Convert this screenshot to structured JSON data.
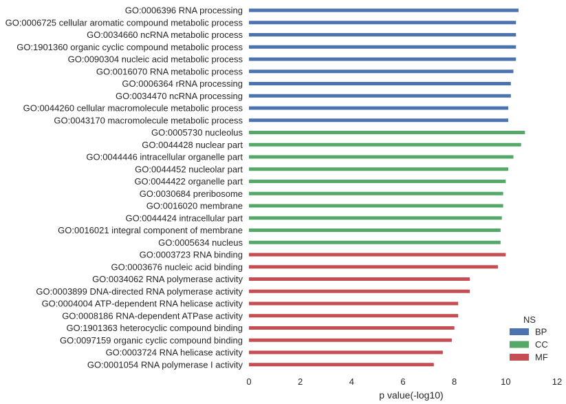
{
  "chart_data": {
    "type": "bar",
    "orientation": "horizontal",
    "xlabel": "p value(-log10)",
    "ylabel": "",
    "xlim": [
      0,
      12
    ],
    "xticks": [
      0,
      2,
      4,
      6,
      8,
      10,
      12
    ],
    "grid": false,
    "legend": {
      "title": "NS",
      "placement": "bottom-right",
      "entries": [
        {
          "name": "BP",
          "color": "#4c72b0"
        },
        {
          "name": "CC",
          "color": "#55a868"
        },
        {
          "name": "MF",
          "color": "#c44e52"
        }
      ]
    },
    "bars": [
      {
        "label": "GO:0006396 RNA processing",
        "value": 10.5,
        "group": "BP"
      },
      {
        "label": "GO:0006725 cellular aromatic compound metabolic process",
        "value": 10.4,
        "group": "BP"
      },
      {
        "label": "GO:0034660 ncRNA metabolic process",
        "value": 10.4,
        "group": "BP"
      },
      {
        "label": "GO:1901360 organic cyclic compound metabolic process",
        "value": 10.4,
        "group": "BP"
      },
      {
        "label": "GO:0090304 nucleic acid metabolic process",
        "value": 10.4,
        "group": "BP"
      },
      {
        "label": "GO:0016070 RNA metabolic process",
        "value": 10.3,
        "group": "BP"
      },
      {
        "label": "GO:0006364 rRNA processing",
        "value": 10.2,
        "group": "BP"
      },
      {
        "label": "GO:0034470 ncRNA processing",
        "value": 10.2,
        "group": "BP"
      },
      {
        "label": "GO:0044260 cellular macromolecule metabolic process",
        "value": 10.1,
        "group": "BP"
      },
      {
        "label": "GO:0043170 macromolecule metabolic process",
        "value": 10.1,
        "group": "BP"
      },
      {
        "label": "GO:0005730 nucleolus",
        "value": 10.75,
        "group": "CC"
      },
      {
        "label": "GO:0044428 nuclear part",
        "value": 10.6,
        "group": "CC"
      },
      {
        "label": "GO:0044446 intracellular organelle part",
        "value": 10.3,
        "group": "CC"
      },
      {
        "label": "GO:0044452 nucleolar part",
        "value": 10.1,
        "group": "CC"
      },
      {
        "label": "GO:0044422 organelle part",
        "value": 10.0,
        "group": "CC"
      },
      {
        "label": "GO:0030684 preribosome",
        "value": 9.9,
        "group": "CC"
      },
      {
        "label": "GO:0016020 membrane",
        "value": 9.9,
        "group": "CC"
      },
      {
        "label": "GO:0044424 intracellular part",
        "value": 9.85,
        "group": "CC"
      },
      {
        "label": "GO:0016021 integral component of membrane",
        "value": 9.8,
        "group": "CC"
      },
      {
        "label": "GO:0005634 nucleus",
        "value": 9.8,
        "group": "CC"
      },
      {
        "label": "GO:0003723 RNA binding",
        "value": 10.0,
        "group": "MF"
      },
      {
        "label": "GO:0003676 nucleic acid binding",
        "value": 9.7,
        "group": "MF"
      },
      {
        "label": "GO:0034062 RNA polymerase activity",
        "value": 8.6,
        "group": "MF"
      },
      {
        "label": "GO:0003899 DNA-directed RNA polymerase activity",
        "value": 8.6,
        "group": "MF"
      },
      {
        "label": "GO:0004004 ATP-dependent RNA helicase activity",
        "value": 8.15,
        "group": "MF"
      },
      {
        "label": "GO:0008186 RNA-dependent ATPase activity",
        "value": 8.15,
        "group": "MF"
      },
      {
        "label": "GO:1901363 heterocyclic compound binding",
        "value": 8.0,
        "group": "MF"
      },
      {
        "label": "GO:0097159 organic cyclic compound binding",
        "value": 7.9,
        "group": "MF"
      },
      {
        "label": "GO:0003724 RNA helicase activity",
        "value": 7.55,
        "group": "MF"
      },
      {
        "label": "GO:0001054 RNA polymerase I activity",
        "value": 7.2,
        "group": "MF"
      }
    ]
  }
}
